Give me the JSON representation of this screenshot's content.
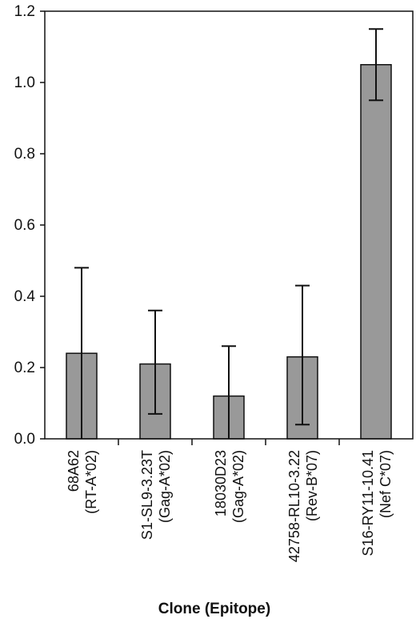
{
  "chart_data": {
    "type": "bar",
    "title": "",
    "xlabel": "Clone (Epitope)",
    "ylabel": "",
    "ylim": [
      0,
      1.2
    ],
    "yticks": [
      "0.0",
      "0.2",
      "0.4",
      "0.6",
      "0.8",
      "1.0",
      "1.2"
    ],
    "ytick_values": [
      0,
      0.2,
      0.4,
      0.6,
      0.8,
      1.0,
      1.2
    ],
    "grid": false,
    "legend": "none",
    "bar_color": "#999999",
    "bar_edge_color": "#111111",
    "categories": [
      {
        "line1": "68A62",
        "line2": "(RT-A*02)"
      },
      {
        "line1": "S1-SL9-3.23T",
        "line2": "(Gag-A*02)"
      },
      {
        "line1": "18030D23",
        "line2": "(Gag-A*02)"
      },
      {
        "line1": "42758-RL10-3.22",
        "line2": "(Rev-B*07)"
      },
      {
        "line1": "S16-RY11-10.41",
        "line2": "(Nef C*07)"
      }
    ],
    "values": [
      0.24,
      0.21,
      0.12,
      0.23,
      1.05
    ],
    "errors_upper": [
      0.48,
      0.36,
      0.26,
      0.43,
      1.15
    ],
    "errors_lower": [
      0.0,
      0.07,
      0.0,
      0.04,
      0.95
    ]
  }
}
